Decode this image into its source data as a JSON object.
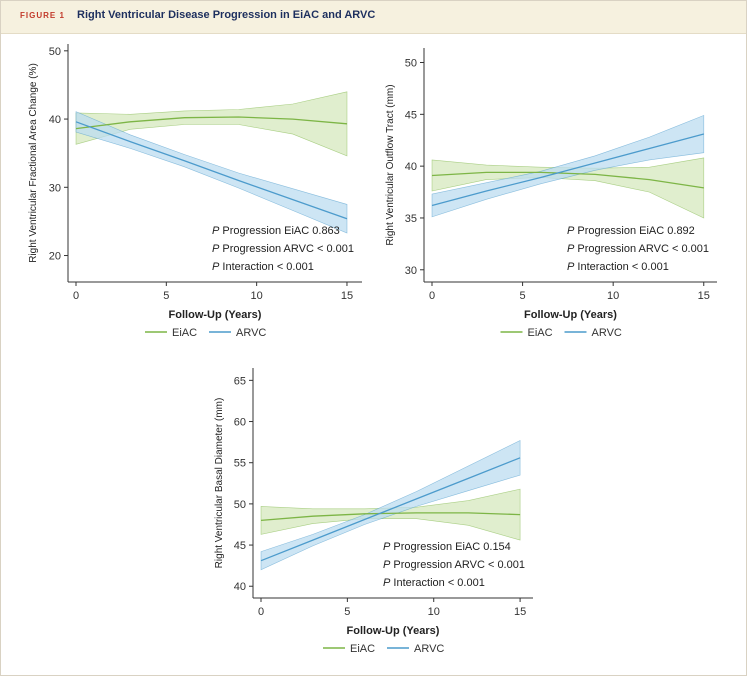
{
  "header": {
    "figure_label": "FIGURE 1",
    "title": "Right Ventricular Disease Progression in EiAC and ARVC"
  },
  "colors": {
    "eiac_line": "#7db546",
    "eiac_band": "#d5e8bd",
    "arvc_line": "#4c9bcc",
    "arvc_band": "#bcdcf0",
    "axis": "#333333"
  },
  "chart_data": [
    {
      "type": "line",
      "title": "",
      "xlabel": "Follow-Up (Years)",
      "ylabel": "Right Ventricular Fractional Area Change (%)",
      "xlim": [
        0,
        15.5
      ],
      "ylim": [
        17,
        51
      ],
      "xticks": [
        0,
        5,
        10,
        15
      ],
      "yticks": [
        20,
        30,
        40,
        50
      ],
      "legend": [
        "EiAC",
        "ARVC"
      ],
      "annotations": [
        "P Progression EiAC 0.863",
        "P Progression ARVC < 0.001",
        "P Interaction < 0.001"
      ],
      "series": [
        {
          "name": "EiAC",
          "x": [
            0,
            3,
            6,
            9,
            12,
            15
          ],
          "y": [
            38.6,
            39.6,
            40.2,
            40.3,
            40.0,
            39.3
          ],
          "lower": [
            36.3,
            38.5,
            39.2,
            39.2,
            37.8,
            34.6
          ],
          "upper": [
            40.9,
            40.7,
            41.2,
            41.4,
            42.2,
            44.0
          ]
        },
        {
          "name": "ARVC",
          "x": [
            0,
            3,
            6,
            9,
            12,
            15
          ],
          "y": [
            39.6,
            36.7,
            33.9,
            31.0,
            28.2,
            25.4
          ],
          "lower": [
            38.1,
            35.7,
            33.0,
            29.9,
            26.6,
            23.3
          ],
          "upper": [
            41.1,
            37.7,
            34.8,
            32.1,
            29.8,
            27.5
          ]
        }
      ]
    },
    {
      "type": "line",
      "title": "",
      "xlabel": "Follow-Up (Years)",
      "ylabel": "Right Ventricular Outflow Tract (mm)",
      "xlim": [
        0,
        15.4
      ],
      "ylim": [
        29.4,
        51.4
      ],
      "xticks": [
        0,
        5,
        10,
        15
      ],
      "yticks": [
        30,
        35,
        40,
        45,
        50
      ],
      "legend": [
        "EiAC",
        "ARVC"
      ],
      "annotations": [
        "P Progression EiAC 0.892",
        "P Progression ARVC < 0.001",
        "P Interaction < 0.001"
      ],
      "series": [
        {
          "name": "EiAC",
          "x": [
            0,
            3,
            6,
            9,
            12,
            15
          ],
          "y": [
            39.1,
            39.4,
            39.4,
            39.2,
            38.7,
            37.9
          ],
          "lower": [
            37.6,
            38.7,
            38.9,
            38.6,
            37.5,
            35.0
          ],
          "upper": [
            40.6,
            40.1,
            39.9,
            39.8,
            39.9,
            40.8
          ]
        },
        {
          "name": "ARVC",
          "x": [
            0,
            3,
            6,
            9,
            12,
            15
          ],
          "y": [
            36.2,
            37.6,
            38.9,
            40.3,
            41.7,
            43.1
          ],
          "lower": [
            35.1,
            36.8,
            38.3,
            39.6,
            40.6,
            41.3
          ],
          "upper": [
            37.3,
            38.4,
            39.5,
            41.0,
            42.8,
            44.9
          ]
        }
      ]
    },
    {
      "type": "line",
      "title": "",
      "xlabel": "Follow-Up (Years)",
      "ylabel": "Right Ventricular Basal Diameter (mm)",
      "xlim": [
        0,
        15.4
      ],
      "ylim": [
        39.3,
        66.5
      ],
      "xticks": [
        0,
        5,
        10,
        15
      ],
      "yticks": [
        40,
        45,
        50,
        55,
        60,
        65
      ],
      "legend": [
        "EiAC",
        "ARVC"
      ],
      "annotations": [
        "P Progression EiAC 0.154",
        "P Progression ARVC < 0.001",
        "P Interaction < 0.001"
      ],
      "series": [
        {
          "name": "EiAC",
          "x": [
            0,
            3,
            6,
            9,
            12,
            15
          ],
          "y": [
            48.0,
            48.5,
            48.8,
            48.9,
            48.9,
            48.7
          ],
          "lower": [
            46.3,
            47.6,
            48.2,
            48.2,
            47.4,
            45.6
          ],
          "upper": [
            49.7,
            49.4,
            49.4,
            49.6,
            50.4,
            51.8
          ]
        },
        {
          "name": "ARVC",
          "x": [
            0,
            3,
            6,
            9,
            12,
            15
          ],
          "y": [
            43.1,
            45.6,
            48.1,
            50.6,
            53.1,
            55.6
          ],
          "lower": [
            42.0,
            44.9,
            47.5,
            49.7,
            51.6,
            53.5
          ],
          "upper": [
            44.2,
            46.3,
            48.7,
            51.5,
            54.6,
            57.7
          ]
        }
      ]
    }
  ]
}
